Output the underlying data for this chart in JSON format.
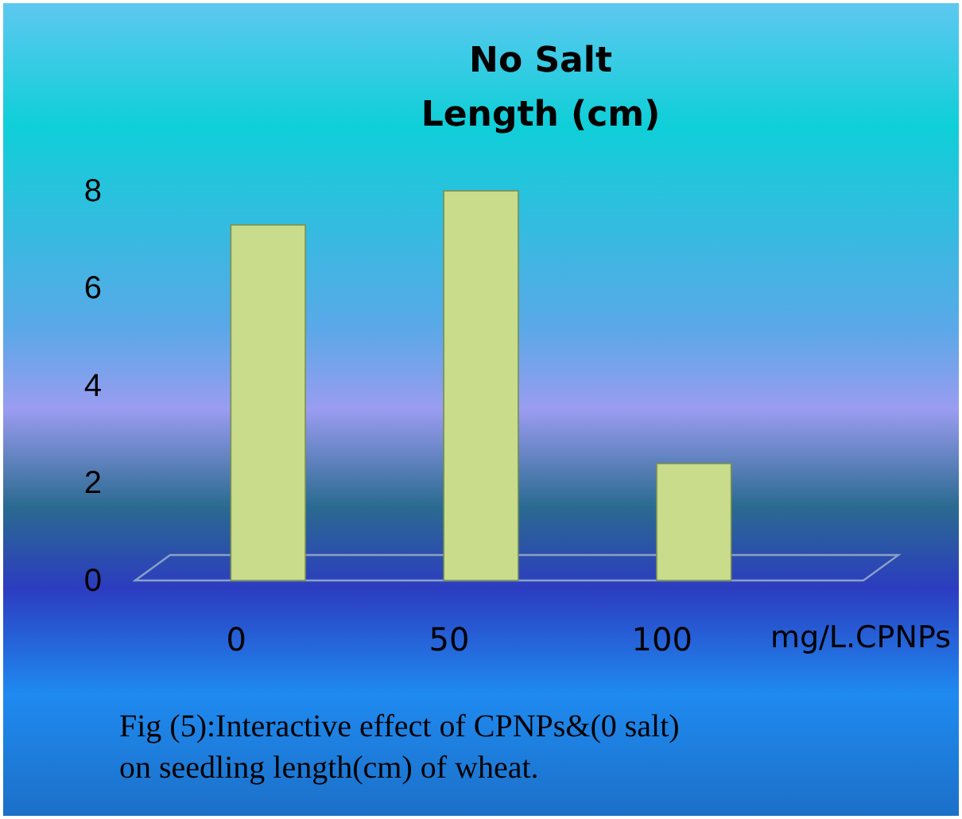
{
  "chart_data": {
    "type": "bar",
    "title": "No Salt\nLength  (cm)",
    "categories": [
      "0",
      "50",
      "100"
    ],
    "values": [
      7.3,
      8.0,
      2.4
    ],
    "color": "#c8dc8c",
    "xlabel": "mg/L.CPNPs",
    "ylim": [
      0,
      8
    ],
    "yticks": [
      0,
      2,
      4,
      6,
      8
    ],
    "grid": false,
    "annotations": [
      "Fig (5):Interactive effect of CPNPs&(0 salt)\non seedling length(cm) of wheat."
    ]
  }
}
